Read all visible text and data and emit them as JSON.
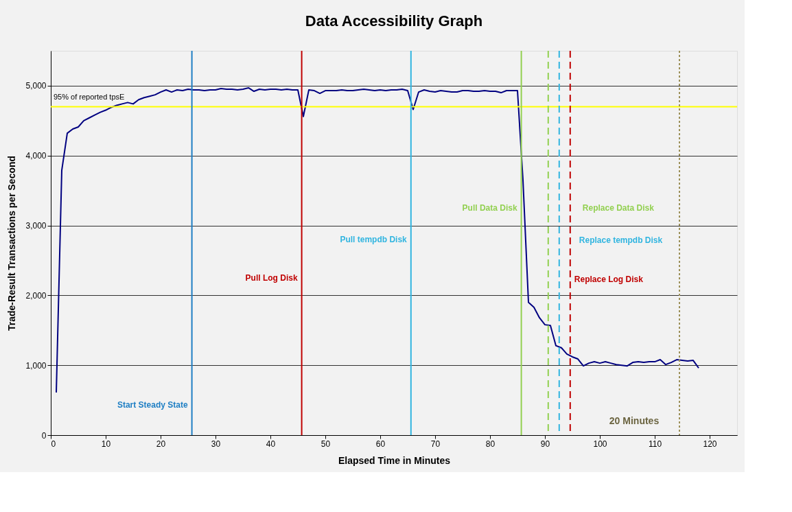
{
  "chart_data": {
    "type": "line",
    "title": "Data Accessibility Graph",
    "xlabel": "Elapsed Time in Minutes",
    "ylabel": "Trade-Result Transactions per Second",
    "x": [
      1,
      2,
      3,
      4,
      5,
      6,
      7,
      8,
      9,
      10,
      11,
      12,
      13,
      14,
      15,
      16,
      17,
      18,
      19,
      20,
      21,
      22,
      23,
      24,
      25,
      26,
      27,
      28,
      29,
      30,
      31,
      32,
      33,
      34,
      35,
      36,
      37,
      38,
      39,
      40,
      41,
      42,
      43,
      44,
      45,
      46,
      47,
      48,
      49,
      50,
      51,
      52,
      53,
      54,
      55,
      56,
      57,
      58,
      59,
      60,
      61,
      62,
      63,
      64,
      65,
      66,
      67,
      68,
      69,
      70,
      71,
      72,
      73,
      74,
      75,
      76,
      77,
      78,
      79,
      80,
      81,
      82,
      83,
      84,
      85,
      86,
      87,
      88,
      89,
      90,
      91,
      92,
      93,
      94,
      95,
      96,
      97,
      98,
      99,
      100,
      101,
      102,
      103,
      104,
      105,
      106,
      107,
      108,
      109,
      110,
      111,
      112,
      113,
      114,
      115,
      116,
      117,
      118
    ],
    "series": [
      {
        "color": "#000080",
        "values": [
          610,
          3790,
          4320,
          4380,
          4410,
          4500,
          4540,
          4580,
          4620,
          4650,
          4690,
          4720,
          4740,
          4760,
          4740,
          4800,
          4830,
          4850,
          4870,
          4910,
          4940,
          4910,
          4940,
          4930,
          4950,
          4940,
          4940,
          4930,
          4940,
          4940,
          4960,
          4950,
          4950,
          4940,
          4950,
          4970,
          4920,
          4950,
          4940,
          4950,
          4950,
          4940,
          4950,
          4940,
          4940,
          4560,
          4940,
          4930,
          4890,
          4930,
          4930,
          4930,
          4940,
          4930,
          4930,
          4940,
          4950,
          4940,
          4930,
          4940,
          4930,
          4940,
          4940,
          4950,
          4930,
          4660,
          4910,
          4940,
          4920,
          4910,
          4930,
          4920,
          4910,
          4910,
          4930,
          4930,
          4920,
          4920,
          4930,
          4920,
          4920,
          4900,
          4930,
          4930,
          4930,
          3650,
          1900,
          1830,
          1680,
          1580,
          1570,
          1280,
          1250,
          1160,
          1120,
          1090,
          990,
          1030,
          1050,
          1030,
          1050,
          1030,
          1010,
          1000,
          990,
          1040,
          1050,
          1040,
          1050,
          1050,
          1080,
          1010,
          1040,
          1080,
          1070,
          1060,
          1070,
          960
        ]
      }
    ],
    "xlim": [
      0,
      125
    ],
    "xticks": [
      0,
      10,
      20,
      30,
      40,
      50,
      60,
      70,
      80,
      90,
      100,
      110,
      120
    ],
    "ylim": [
      0,
      5500
    ],
    "yticks": [
      {
        "value": 0,
        "label": "0"
      },
      {
        "value": 1000,
        "label": "1,000"
      },
      {
        "value": 2000,
        "label": "2,000"
      },
      {
        "value": 3000,
        "label": "3,000"
      },
      {
        "value": 4000,
        "label": "4,000"
      },
      {
        "value": 5000,
        "label": "5,000"
      }
    ],
    "grid": "y",
    "marker": "none",
    "line_style": "solid",
    "ref_lines": [
      {
        "axis": "y",
        "value": 4700,
        "label": "95% of reported tpsE",
        "color": "#ffff00",
        "line_style": "solid"
      },
      {
        "axis": "x",
        "value": 25.7,
        "label": "Start Steady State",
        "color": "#1f7fc4",
        "line_style": "solid"
      },
      {
        "axis": "x",
        "value": 45.7,
        "label": "Pull Log Disk",
        "color": "#c00000",
        "line_style": "solid"
      },
      {
        "axis": "x",
        "value": 65.6,
        "label": "Pull tempdb Disk",
        "color": "#31b5e0",
        "line_style": "solid"
      },
      {
        "axis": "x",
        "value": 85.7,
        "label": "Pull Data Disk",
        "color": "#92d050",
        "line_style": "solid"
      },
      {
        "axis": "x",
        "value": 90.6,
        "label": "Replace Data Disk",
        "color": "#92d050",
        "line_style": "dashed"
      },
      {
        "axis": "x",
        "value": 92.6,
        "label": "Replace tempdb Disk",
        "color": "#31b5e0",
        "line_style": "dashed"
      },
      {
        "axis": "x",
        "value": 94.6,
        "label": "Replace Log Disk",
        "color": "#c00000",
        "line_style": "dashed"
      },
      {
        "axis": "x",
        "value": 114.5,
        "color": "#9c9058",
        "line_style": "dotted"
      }
    ],
    "annotations": [
      "20 Minutes"
    ]
  }
}
